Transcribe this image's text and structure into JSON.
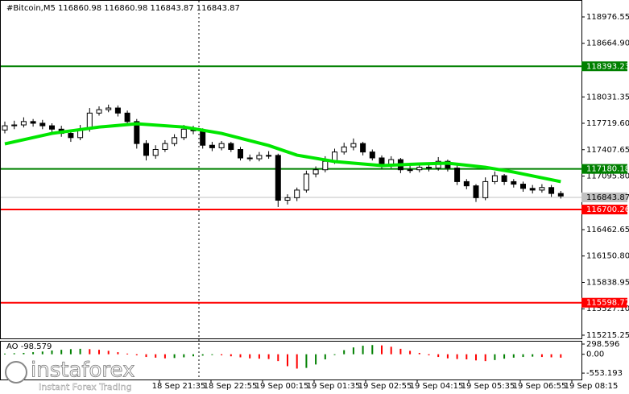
{
  "header": "#Bitcoin,M5  116860.98 116860.98 116843.87 116843.87",
  "chart_data": {
    "type": "candlestick",
    "open": [
      117640,
      117690,
      117700,
      117740,
      117720,
      117690,
      117650,
      117600,
      117550,
      117650,
      117840,
      117880,
      117900,
      117840,
      117740,
      117480,
      117340,
      117410,
      117480,
      117550,
      117650,
      117630,
      117460,
      117430,
      117480,
      117410,
      117310,
      117300,
      117340,
      117340,
      116810,
      116840,
      116930,
      117120,
      117170,
      117270,
      117380,
      117440,
      117480,
      117380,
      117310,
      117220,
      117290,
      117170,
      117170,
      117200,
      117190,
      117270,
      117190,
      117030,
      116980,
      116840,
      117030,
      117100,
      117030,
      117000,
      116950,
      116930,
      116960,
      116890
    ],
    "high": [
      117740,
      117750,
      117790,
      117770,
      117760,
      117720,
      117690,
      117640,
      117700,
      117900,
      117920,
      117940,
      117930,
      117870,
      117770,
      117520,
      117460,
      117520,
      117590,
      117700,
      117690,
      117660,
      117500,
      117510,
      117500,
      117440,
      117350,
      117380,
      117390,
      117360,
      116880,
      116960,
      117160,
      117210,
      117330,
      117420,
      117490,
      117540,
      117500,
      117410,
      117340,
      117330,
      117310,
      117220,
      117240,
      117230,
      117320,
      117290,
      117220,
      117060,
      117000,
      117080,
      117150,
      117120,
      117060,
      117030,
      116990,
      117000,
      116990,
      116920
    ],
    "low": [
      117600,
      117650,
      117670,
      117680,
      117650,
      117610,
      117560,
      117500,
      117520,
      117620,
      117810,
      117850,
      117800,
      117700,
      117420,
      117280,
      117300,
      117380,
      117450,
      117520,
      117590,
      117420,
      117390,
      117400,
      117380,
      117280,
      117270,
      117270,
      117300,
      116730,
      116760,
      116800,
      116900,
      117080,
      117140,
      117240,
      117350,
      117400,
      117340,
      117280,
      117180,
      117190,
      117130,
      117130,
      117140,
      117150,
      117160,
      117150,
      116990,
      116940,
      116790,
      116810,
      117000,
      116990,
      116960,
      116910,
      116890,
      116900,
      116850,
      116830
    ],
    "close": [
      117690,
      117700,
      117740,
      117720,
      117690,
      117650,
      117600,
      117550,
      117650,
      117840,
      117880,
      117900,
      117840,
      117740,
      117480,
      117340,
      117410,
      117480,
      117550,
      117650,
      117630,
      117460,
      117430,
      117480,
      117410,
      117310,
      117300,
      117340,
      117340,
      116810,
      116840,
      116930,
      117120,
      117170,
      117270,
      117380,
      117440,
      117480,
      117380,
      117310,
      117220,
      117290,
      117170,
      117170,
      117200,
      117190,
      117270,
      117190,
      117030,
      116980,
      116840,
      117030,
      117100,
      117030,
      117000,
      116950,
      116930,
      116960,
      116890,
      116860
    ],
    "ylim": [
      115177,
      119167
    ],
    "yticks": [
      118976.55,
      {
        "value": 118664.9,
        "label": "118664.90"
      },
      118031.35,
      {
        "value": 117719.6,
        "label": "117719.60"
      },
      117407.65,
      {
        "value": 117095.8,
        "label": "117095.80"
      },
      116462.65,
      {
        "value": 116150.8,
        "label": "116150.80"
      },
      115838.95,
      {
        "value": 115527.1,
        "label": "115527.10"
      },
      115215.25
    ],
    "levels": [
      {
        "value": 118393.23,
        "color": "#008000"
      },
      {
        "value": 117180.18,
        "color": "#008000"
      },
      {
        "value": 116700.26,
        "color": "#ff0000"
      },
      {
        "value": 115598.77,
        "color": "#ff0000"
      }
    ],
    "current_price": 116843.87,
    "moving_average": {
      "color": "#00e600",
      "x": [
        0,
        5,
        10,
        14,
        19,
        23,
        28,
        31,
        35,
        40,
        44,
        47,
        51,
        54,
        59
      ],
      "values": [
        117476,
        117600,
        117675,
        117713,
        117675,
        117600,
        117457,
        117343,
        117267,
        117220,
        117239,
        117248,
        117200,
        117143,
        117030
      ]
    },
    "x_labels": [
      "18 Sep 21:35",
      "18 Sep 22:55",
      "19 Sep 00:15",
      "19 Sep 01:35",
      "19 Sep 02:55",
      "19 Sep 04:15",
      "19 Sep 05:35",
      "19 Sep 06:55",
      "19 Sep 08:15"
    ],
    "oscillator": {
      "label": "AO -98.579",
      "values": [
        20,
        30,
        40,
        60,
        80,
        110,
        130,
        150,
        160,
        150,
        130,
        100,
        60,
        20,
        -30,
        -80,
        -100,
        -120,
        -110,
        -90,
        -60,
        -40,
        -20,
        -30,
        -60,
        -90,
        -120,
        -130,
        -140,
        -200,
        -350,
        -420,
        -400,
        -300,
        -150,
        0,
        120,
        200,
        250,
        270,
        260,
        220,
        160,
        100,
        40,
        -30,
        -80,
        -120,
        -140,
        -150,
        -180,
        -200,
        -170,
        -130,
        -100,
        -80,
        -70,
        -80,
        -90,
        -100
      ],
      "ylim": [
        -740,
        370
      ],
      "yticks": [
        298.596,
        {
          "value": 0,
          "label": "0.00"
        },
        -553.193
      ],
      "up_color": "#008000",
      "down_color": "#ff0000"
    }
  },
  "logo": {
    "name": "instaforex",
    "tagline": "Instant Forex Trading"
  }
}
